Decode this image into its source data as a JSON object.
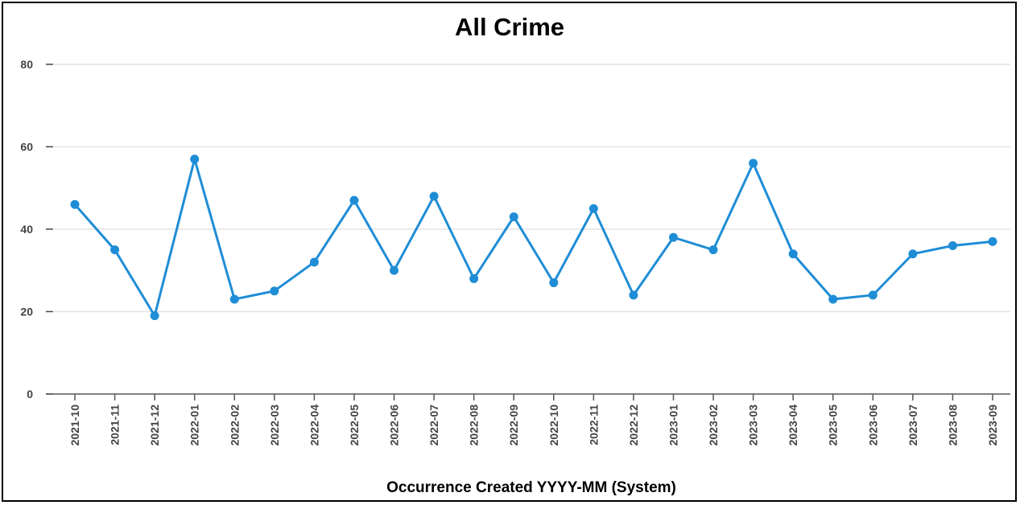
{
  "chart_data": {
    "type": "line",
    "title": "All Crime",
    "xlabel": "Occurrence Created YYYY-MM (System)",
    "ylabel": "",
    "ylim": [
      0,
      80
    ],
    "yticks": [
      "0",
      "20",
      "40",
      "60",
      "80"
    ],
    "grid": true,
    "legend": "none",
    "line_color": "#1f8dd6",
    "categories": [
      "2021-10",
      "2021-11",
      "2021-12",
      "2022-01",
      "2022-02",
      "2022-03",
      "2022-04",
      "2022-05",
      "2022-06",
      "2022-07",
      "2022-08",
      "2022-09",
      "2022-10",
      "2022-11",
      "2022-12",
      "2023-01",
      "2023-02",
      "2023-03",
      "2023-04",
      "2023-05",
      "2023-06",
      "2023-07",
      "2023-08",
      "2023-09"
    ],
    "values": [
      46,
      35,
      19,
      57,
      23,
      25,
      32,
      47,
      30,
      48,
      28,
      43,
      27,
      45,
      24,
      38,
      35,
      56,
      34,
      23,
      24,
      34,
      36,
      37
    ]
  }
}
